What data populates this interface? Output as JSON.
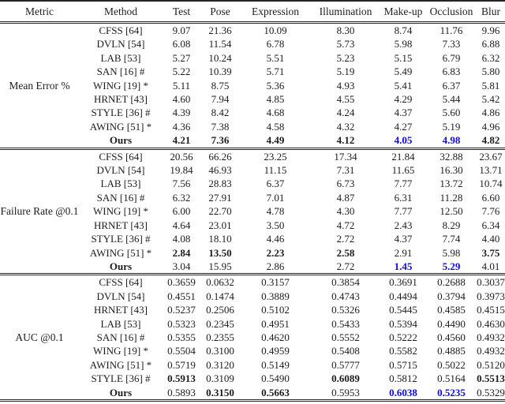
{
  "table": {
    "accent_blue": "#0b0bee",
    "text_color": "#1c1c1c",
    "columns": [
      "Metric",
      "Method",
      "Test",
      "Pose",
      "Expression",
      "Illumination",
      "Make-up",
      "Occlusion",
      "Blur"
    ],
    "style_legend": {
      "b": "bold (best competitor)",
      "bb": "bold blue (best overall)"
    },
    "sections": [
      {
        "metric": "Mean Error %",
        "rows": [
          {
            "method": "CFSS [64]",
            "bold": false,
            "values": [
              "9.07",
              "21.36",
              "10.09",
              "8.30",
              "8.74",
              "11.76",
              "9.96"
            ],
            "styles": [
              "",
              "",
              "",
              "",
              "",
              "",
              ""
            ]
          },
          {
            "method": "DVLN [54]",
            "bold": false,
            "values": [
              "6.08",
              "11.54",
              "6.78",
              "5.73",
              "5.98",
              "7.33",
              "6.88"
            ],
            "styles": [
              "",
              "",
              "",
              "",
              "",
              "",
              ""
            ]
          },
          {
            "method": "LAB [53]",
            "bold": false,
            "values": [
              "5.27",
              "10.24",
              "5.51",
              "5.23",
              "5.15",
              "6.79",
              "6.32"
            ],
            "styles": [
              "",
              "",
              "",
              "",
              "",
              "",
              ""
            ]
          },
          {
            "method": "SAN [16] #",
            "bold": false,
            "values": [
              "5.22",
              "10.39",
              "5.71",
              "5.19",
              "5.49",
              "6.83",
              "5.80"
            ],
            "styles": [
              "",
              "",
              "",
              "",
              "",
              "",
              ""
            ]
          },
          {
            "method": "WING [19] *",
            "bold": false,
            "values": [
              "5.11",
              "8.75",
              "5.36",
              "4.93",
              "5.41",
              "6.37",
              "5.81"
            ],
            "styles": [
              "",
              "",
              "",
              "",
              "",
              "",
              ""
            ]
          },
          {
            "method": "HRNET [43]",
            "bold": false,
            "values": [
              "4.60",
              "7.94",
              "4.85",
              "4.55",
              "4.29",
              "5.44",
              "5.42"
            ],
            "styles": [
              "",
              "",
              "",
              "",
              "",
              "",
              ""
            ]
          },
          {
            "method": "STYLE [36] #",
            "bold": false,
            "values": [
              "4.39",
              "8.42",
              "4.68",
              "4.24",
              "4.37",
              "5.60",
              "4.86"
            ],
            "styles": [
              "",
              "",
              "",
              "",
              "",
              "",
              ""
            ]
          },
          {
            "method": "AWING [51] *",
            "bold": false,
            "values": [
              "4.36",
              "7.38",
              "4.58",
              "4.32",
              "4.27",
              "5.19",
              "4.96"
            ],
            "styles": [
              "",
              "",
              "",
              "",
              "",
              "",
              ""
            ]
          },
          {
            "method": "Ours",
            "bold": true,
            "values": [
              "4.21",
              "7.36",
              "4.49",
              "4.12",
              "4.05",
              "4.98",
              "4.82"
            ],
            "styles": [
              "b",
              "b",
              "b",
              "b",
              "bb",
              "bb",
              "b"
            ]
          }
        ]
      },
      {
        "metric": "Failure Rate @0.1",
        "rows": [
          {
            "method": "CFSS [64]",
            "bold": false,
            "values": [
              "20.56",
              "66.26",
              "23.25",
              "17.34",
              "21.84",
              "32.88",
              "23.67"
            ],
            "styles": [
              "",
              "",
              "",
              "",
              "",
              "",
              ""
            ]
          },
          {
            "method": "DVLN [54]",
            "bold": false,
            "values": [
              "19.84",
              "46.93",
              "11.15",
              "7.31",
              "11.65",
              "16.30",
              "13.71"
            ],
            "styles": [
              "",
              "",
              "",
              "",
              "",
              "",
              ""
            ]
          },
          {
            "method": "LAB [53]",
            "bold": false,
            "values": [
              "7.56",
              "28.83",
              "6.37",
              "6.73",
              "7.77",
              "13.72",
              "10.74"
            ],
            "styles": [
              "",
              "",
              "",
              "",
              "",
              "",
              ""
            ]
          },
          {
            "method": "SAN [16] #",
            "bold": false,
            "values": [
              "6.32",
              "27.91",
              "7.01",
              "4.87",
              "6.31",
              "11.28",
              "6.60"
            ],
            "styles": [
              "",
              "",
              "",
              "",
              "",
              "",
              ""
            ]
          },
          {
            "method": "WING [19] *",
            "bold": false,
            "values": [
              "6.00",
              "22.70",
              "4.78",
              "4.30",
              "7.77",
              "12.50",
              "7.76"
            ],
            "styles": [
              "",
              "",
              "",
              "",
              "",
              "",
              ""
            ]
          },
          {
            "method": "HRNET [43]",
            "bold": false,
            "values": [
              "4.64",
              "23.01",
              "3.50",
              "4.72",
              "2.43",
              "8.29",
              "6.34"
            ],
            "styles": [
              "",
              "",
              "",
              "",
              "",
              "",
              ""
            ]
          },
          {
            "method": "STYLE [36] #",
            "bold": false,
            "values": [
              "4.08",
              "18.10",
              "4.46",
              "2.72",
              "4.37",
              "7.74",
              "4.40"
            ],
            "styles": [
              "",
              "",
              "",
              "",
              "",
              "",
              ""
            ]
          },
          {
            "method": "AWING [51] *",
            "bold": false,
            "values": [
              "2.84",
              "13.50",
              "2.23",
              "2.58",
              "2.91",
              "5.98",
              "3.75"
            ],
            "styles": [
              "b",
              "b",
              "b",
              "b",
              "",
              "",
              "b"
            ]
          },
          {
            "method": "Ours",
            "bold": true,
            "values": [
              "3.04",
              "15.95",
              "2.86",
              "2.72",
              "1.45",
              "5.29",
              "4.01"
            ],
            "styles": [
              "",
              "",
              "",
              "",
              "bb",
              "bb",
              ""
            ]
          }
        ]
      },
      {
        "metric": "AUC @0.1",
        "rows": [
          {
            "method": "CFSS [64]",
            "bold": false,
            "values": [
              "0.3659",
              "0.0632",
              "0.3157",
              "0.3854",
              "0.3691",
              "0.2688",
              "0.3037"
            ],
            "styles": [
              "",
              "",
              "",
              "",
              "",
              "",
              ""
            ]
          },
          {
            "method": "DVLN [54]",
            "bold": false,
            "values": [
              "0.4551",
              "0.1474",
              "0.3889",
              "0.4743",
              "0.4494",
              "0.3794",
              "0.3973"
            ],
            "styles": [
              "",
              "",
              "",
              "",
              "",
              "",
              ""
            ]
          },
          {
            "method": "HRNET [43]",
            "bold": false,
            "values": [
              "0.5237",
              "0.2506",
              "0.5102",
              "0.5326",
              "0.5445",
              "0.4585",
              "0.4515"
            ],
            "styles": [
              "",
              "",
              "",
              "",
              "",
              "",
              ""
            ]
          },
          {
            "method": "LAB [53]",
            "bold": false,
            "values": [
              "0.5323",
              "0.2345",
              "0.4951",
              "0.5433",
              "0.5394",
              "0.4490",
              "0.4630"
            ],
            "styles": [
              "",
              "",
              "",
              "",
              "",
              "",
              ""
            ]
          },
          {
            "method": "SAN [16] #",
            "bold": false,
            "values": [
              "0.5355",
              "0.2355",
              "0.4620",
              "0.5552",
              "0.5222",
              "0.4560",
              "0.4932"
            ],
            "styles": [
              "",
              "",
              "",
              "",
              "",
              "",
              ""
            ]
          },
          {
            "method": "WING [19] *",
            "bold": false,
            "values": [
              "0.5504",
              "0.3100",
              "0.4959",
              "0.5408",
              "0.5582",
              "0.4885",
              "0.4932"
            ],
            "styles": [
              "",
              "",
              "",
              "",
              "",
              "",
              ""
            ]
          },
          {
            "method": "AWING [51] *",
            "bold": false,
            "values": [
              "0.5719",
              "0.3120",
              "0.5149",
              "0.5777",
              "0.5715",
              "0.5022",
              "0.5120"
            ],
            "styles": [
              "",
              "",
              "",
              "",
              "",
              "",
              ""
            ]
          },
          {
            "method": "STYLE [36] #",
            "bold": false,
            "values": [
              "0.5913",
              "0.3109",
              "0.5490",
              "0.6089",
              "0.5812",
              "0.5164",
              "0.5513"
            ],
            "styles": [
              "b",
              "",
              "",
              "b",
              "",
              "",
              "b"
            ]
          },
          {
            "method": "Ours",
            "bold": true,
            "values": [
              "0.5893",
              "0.3150",
              "0.5663",
              "0.5953",
              "0.6038",
              "0.5235",
              "0.5329"
            ],
            "styles": [
              "",
              "b",
              "b",
              "",
              "bb",
              "bb",
              ""
            ]
          }
        ]
      }
    ]
  }
}
